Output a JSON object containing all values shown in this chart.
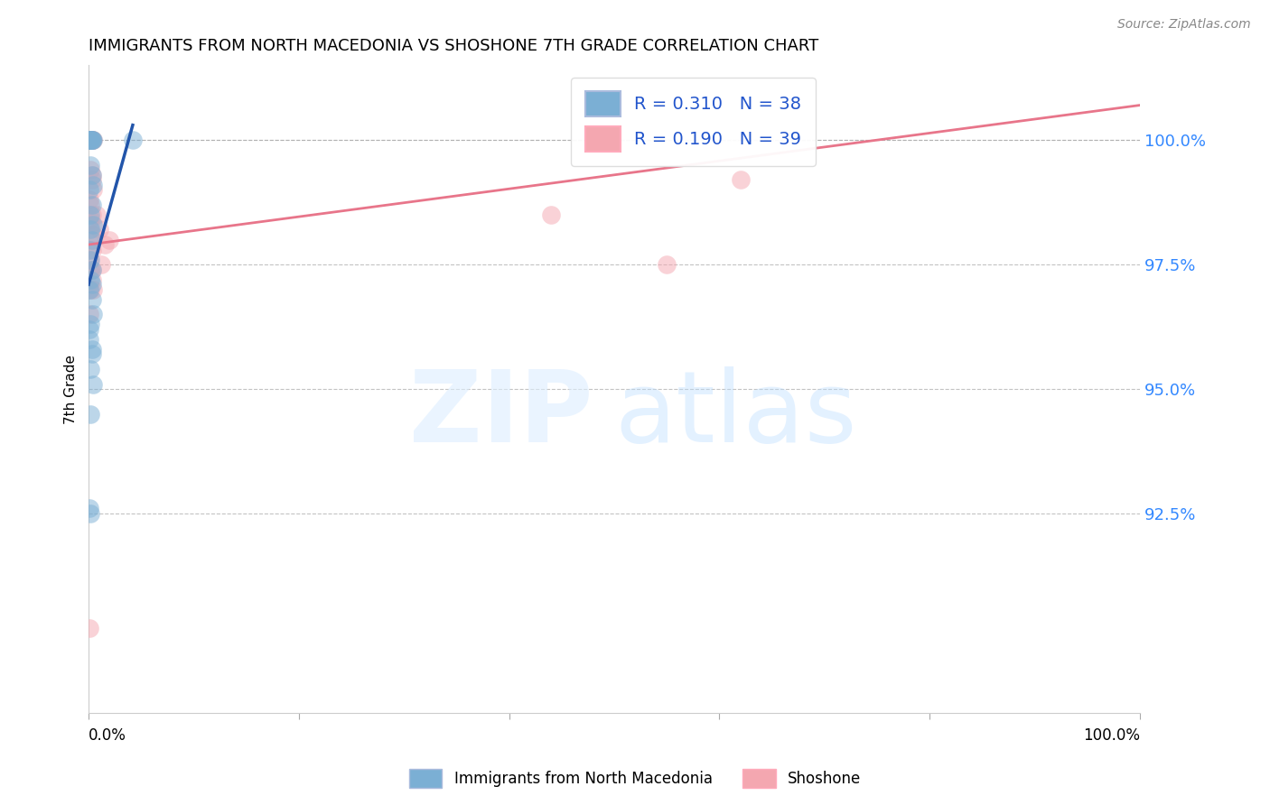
{
  "title": "IMMIGRANTS FROM NORTH MACEDONIA VS SHOSHONE 7TH GRADE CORRELATION CHART",
  "source": "Source: ZipAtlas.com",
  "ylabel": "7th Grade",
  "y_ticks": [
    92.5,
    95.0,
    97.5,
    100.0
  ],
  "y_tick_labels": [
    "92.5%",
    "95.0%",
    "97.5%",
    "100.0%"
  ],
  "x_range": [
    0.0,
    1.0
  ],
  "y_range": [
    88.5,
    101.5
  ],
  "blue_color": "#7BAFD4",
  "pink_color": "#F4A7B0",
  "blue_line_color": "#2255AA",
  "pink_line_color": "#E8758A",
  "blue_line_x": [
    0.0,
    0.042
  ],
  "blue_line_y": [
    97.1,
    100.3
  ],
  "pink_line_x": [
    0.0,
    1.0
  ],
  "pink_line_y": [
    97.9,
    100.7
  ],
  "blue_scatter_x": [
    0.001,
    0.002,
    0.003,
    0.001,
    0.002,
    0.003,
    0.004,
    0.002,
    0.003,
    0.001,
    0.002,
    0.003,
    0.004,
    0.001,
    0.003,
    0.002,
    0.004,
    0.003,
    0.001,
    0.002,
    0.003,
    0.002,
    0.001,
    0.003,
    0.004,
    0.002,
    0.001,
    0.003,
    0.002,
    0.004,
    0.001,
    0.002,
    0.042,
    0.002,
    0.003,
    0.001,
    0.003,
    0.002
  ],
  "blue_scatter_y": [
    100.0,
    100.0,
    100.0,
    100.0,
    100.0,
    100.0,
    100.0,
    100.0,
    100.0,
    100.0,
    99.5,
    99.3,
    99.1,
    99.0,
    98.7,
    98.5,
    98.3,
    98.0,
    97.8,
    97.6,
    97.4,
    97.2,
    97.0,
    96.8,
    96.5,
    96.3,
    96.0,
    95.7,
    95.4,
    95.1,
    92.6,
    92.5,
    100.0,
    94.5,
    95.8,
    96.2,
    97.1,
    98.2
  ],
  "pink_scatter_x": [
    0.001,
    0.002,
    0.003,
    0.001,
    0.002,
    0.003,
    0.004,
    0.002,
    0.003,
    0.001,
    0.002,
    0.003,
    0.004,
    0.001,
    0.003,
    0.002,
    0.004,
    0.003,
    0.001,
    0.002,
    0.003,
    0.004,
    0.008,
    0.01,
    0.015,
    0.012,
    0.02,
    0.003,
    0.002,
    0.44,
    0.55,
    0.62,
    0.001,
    0.002,
    0.003,
    0.001,
    0.003,
    0.002,
    0.001
  ],
  "pink_scatter_y": [
    100.0,
    100.0,
    100.0,
    100.0,
    100.0,
    100.0,
    100.0,
    100.0,
    100.0,
    100.0,
    99.4,
    99.2,
    99.0,
    98.8,
    98.5,
    98.3,
    98.1,
    97.8,
    97.6,
    97.4,
    97.2,
    97.0,
    98.5,
    98.2,
    97.9,
    97.5,
    98.0,
    99.3,
    98.7,
    98.5,
    97.5,
    99.2,
    96.5,
    97.0,
    97.4,
    97.8,
    98.1,
    98.4,
    90.2
  ]
}
